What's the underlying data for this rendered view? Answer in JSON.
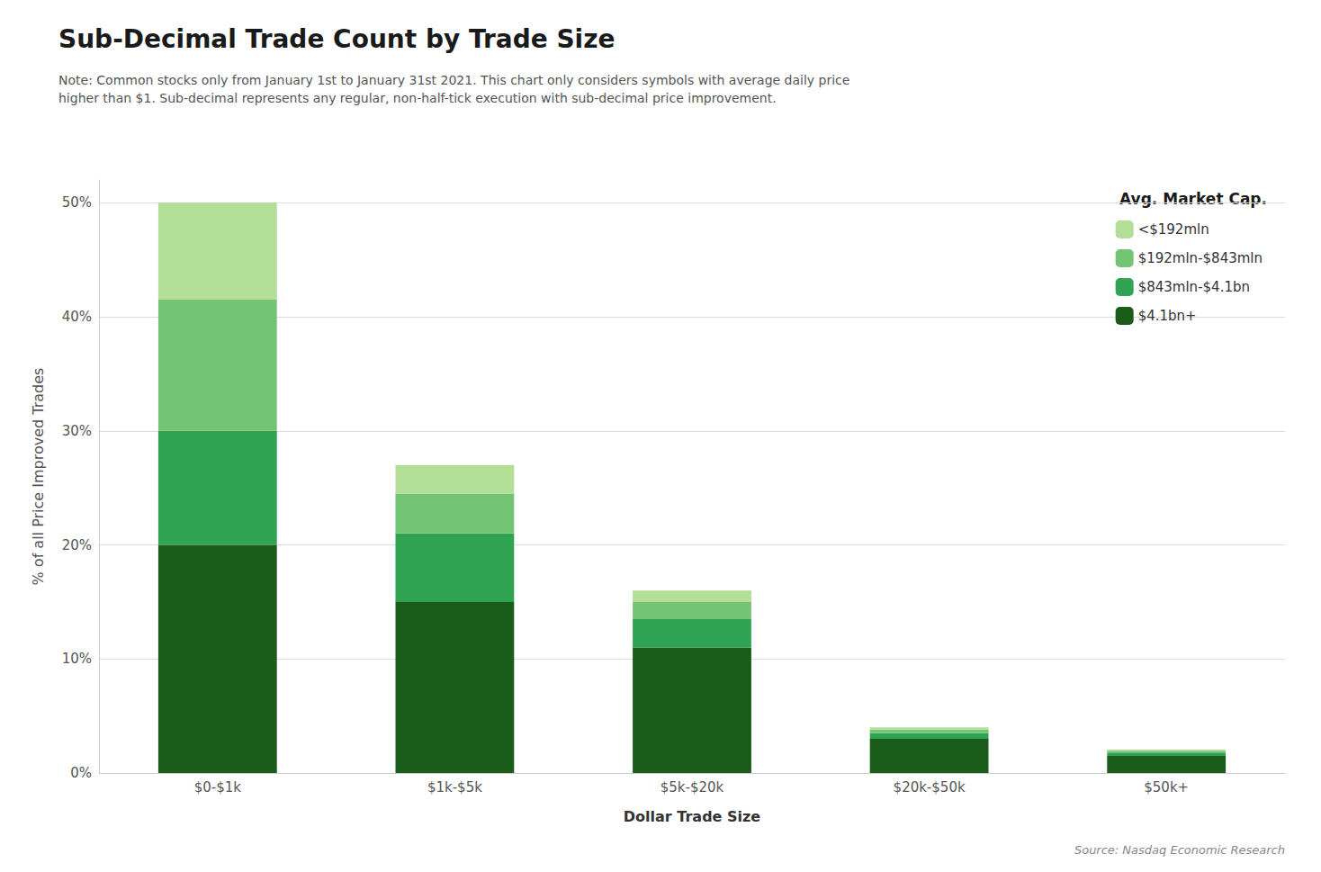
{
  "chart_data": {
    "type": "bar",
    "stacked": true,
    "title": "Sub-Decimal Trade Count by Trade Size",
    "subtitle": "Note: Common stocks only from January 1st to January 31st 2021. This chart only considers symbols with average daily price\nhigher than $1. Sub-decimal represents any regular, non-half-tick execution with sub-decimal price improvement.",
    "xlabel": "Dollar Trade Size",
    "ylabel": "% of all Price Improved Trades",
    "annotations": [
      "Source: Nasdaq Economic Research"
    ],
    "legend_title": "Avg. Market Cap.",
    "legend": "upper right",
    "grid": true,
    "categories": [
      "$0-$1k",
      "$1k-$5k",
      "$5k-$20k",
      "$20k-$50k",
      "$50k+"
    ],
    "series": [
      {
        "name": "$4.1bn+",
        "color": "#1a5c1a",
        "values": [
          20.0,
          15.0,
          11.0,
          3.0,
          1.5
        ]
      },
      {
        "name": "$843mln-$4.1bn",
        "color": "#31a354",
        "values": [
          10.0,
          6.0,
          2.5,
          0.5,
          0.3
        ]
      },
      {
        "name": "$192mln-$843mln",
        "color": "#74c476",
        "values": [
          11.5,
          3.5,
          1.5,
          0.3,
          0.15
        ]
      },
      {
        "name": "<$192mln",
        "color": "#b2de96",
        "values": [
          8.5,
          2.5,
          1.0,
          0.2,
          0.1
        ]
      }
    ],
    "ylim": [
      0,
      52
    ],
    "yticks": [
      {
        "value": 0,
        "label": "0%"
      },
      {
        "value": 10,
        "label": "10%"
      },
      {
        "value": 20,
        "label": "20%"
      },
      {
        "value": 30,
        "label": "30%"
      },
      {
        "value": 40,
        "label": "40%"
      },
      {
        "value": 50,
        "label": "50%"
      }
    ]
  }
}
